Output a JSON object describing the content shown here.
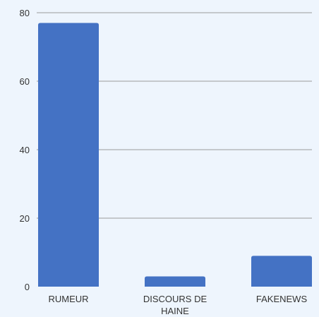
{
  "chart_data": {
    "type": "bar",
    "categories": [
      "RUMEUR",
      "DISCOURS DE HAINE",
      "FAKENEWS"
    ],
    "category_lines": [
      [
        "RUMEUR"
      ],
      [
        "DISCOURS DE",
        "HAINE"
      ],
      [
        "FAKENEWS"
      ]
    ],
    "values": [
      77,
      3,
      9
    ],
    "ylim": [
      0,
      80
    ],
    "yticks": [
      0,
      20,
      40,
      60,
      80
    ],
    "grid": true,
    "title": "",
    "xlabel": "",
    "ylabel": ""
  },
  "colors": {
    "bar": "#4472c4",
    "background": "#eef5fd",
    "grid": "#9a9a9a",
    "text": "#333333"
  }
}
